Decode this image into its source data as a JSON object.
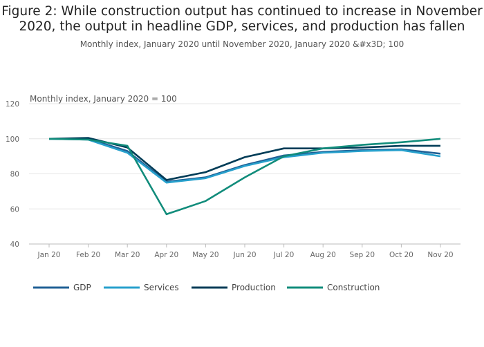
{
  "title": "Figure 2: While construction output has continued to increase in November 2020, the output in headline GDP, services, and production has fallen",
  "subtitle": "Monthly index, January 2020 until November 2020, January 2020 &#x3D; 100",
  "chart_data": {
    "type": "line",
    "ylabel": "Monthly index, January 2020 = 100",
    "ylim": [
      40,
      120
    ],
    "yticks": [
      40,
      60,
      80,
      100,
      120
    ],
    "grid": true,
    "legend": "bottom",
    "categories": [
      "Jan 20",
      "Feb 20",
      "Mar 20",
      "Apr 20",
      "May 20",
      "Jun 20",
      "Jul 20",
      "Aug 20",
      "Sep 20",
      "Oct 20",
      "Nov 20"
    ],
    "series": [
      {
        "name": "GDP",
        "color": "#206095",
        "values": [
          100,
          100,
          93,
          75.5,
          78,
          85,
          90.5,
          92.5,
          93.5,
          94,
          91.5
        ]
      },
      {
        "name": "Services",
        "color": "#27a0cc",
        "values": [
          100,
          99.5,
          92,
          75,
          77.5,
          84.5,
          89.5,
          92,
          93,
          93.5,
          90
        ]
      },
      {
        "name": "Production",
        "color": "#003c57",
        "values": [
          100,
          100.5,
          95,
          76.5,
          81,
          89.5,
          94.5,
          94.5,
          95,
          96,
          96
        ]
      },
      {
        "name": "Construction",
        "color": "#118c7b",
        "values": [
          100,
          99.5,
          96,
          57,
          64.5,
          78,
          90,
          94.5,
          96.5,
          98,
          100
        ]
      }
    ]
  }
}
